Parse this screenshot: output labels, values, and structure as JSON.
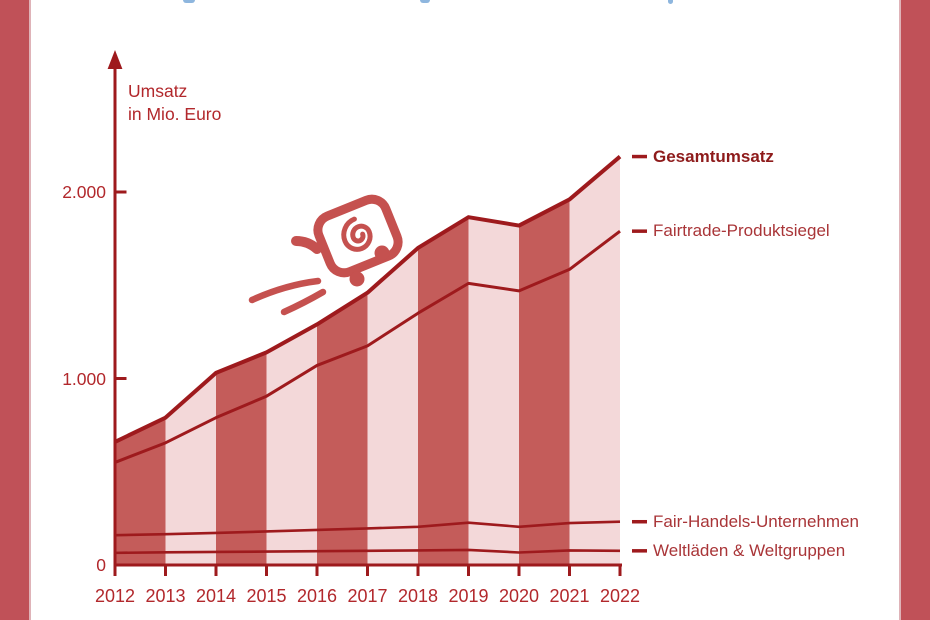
{
  "page": {
    "background": "#ffffff",
    "side_border_color": "#c05158",
    "side_border_inner_edge_color": "#dfb3b8",
    "cropped_top_text_color": "#7aa9d8",
    "decorations": {
      "cart_icon": "hand-drawn shopping cart with spiral basket, two wheels and speed lines",
      "cart_icon_color": "#c5514f"
    }
  },
  "chart_data": {
    "type": "area",
    "title": "",
    "ylabel": "Umsatz in Mio. Euro",
    "ylabel_lines": [
      "Umsatz",
      "in Mio. Euro"
    ],
    "xlabel": "",
    "categories": [
      "2012",
      "2013",
      "2014",
      "2015",
      "2016",
      "2017",
      "2018",
      "2019",
      "2020",
      "2021",
      "2022"
    ],
    "series": [
      {
        "name": "Gesamtumsatz",
        "emphasis": "bold",
        "values": [
          660,
          790,
          1030,
          1140,
          1290,
          1460,
          1700,
          1865,
          1820,
          1960,
          2190
        ]
      },
      {
        "name": "Fairtrade-Produktsiegel",
        "emphasis": "regular",
        "values": [
          550,
          655,
          790,
          905,
          1070,
          1175,
          1350,
          1510,
          1470,
          1585,
          1790
        ]
      },
      {
        "name": "Fair-Handels-Unternehmen",
        "emphasis": "regular",
        "values": [
          160,
          165,
          172,
          180,
          188,
          196,
          205,
          227,
          205,
          225,
          232
        ]
      },
      {
        "name": "Weltläden & Weltgruppen",
        "emphasis": "regular",
        "values": [
          65,
          68,
          70,
          72,
          74,
          76,
          78,
          81,
          67,
          78,
          76
        ]
      }
    ],
    "yticks": [
      {
        "value": 0,
        "label": "0"
      },
      {
        "value": 1000,
        "label": "1.000"
      },
      {
        "value": 2000,
        "label": "2.000"
      }
    ],
    "ylim": [
      0,
      2350
    ],
    "grid": false,
    "legend_position": "right",
    "fill_style": "alternating vertical year bands under the Gesamtumsatz line",
    "colors": {
      "line": "#9e1a1d",
      "band_dark": "#c45c5a",
      "band_light": "#f3d8d9",
      "axis_text": "#b2282c",
      "legend_text": "#a93538",
      "legend_bold_text": "#8e1b1b"
    }
  }
}
